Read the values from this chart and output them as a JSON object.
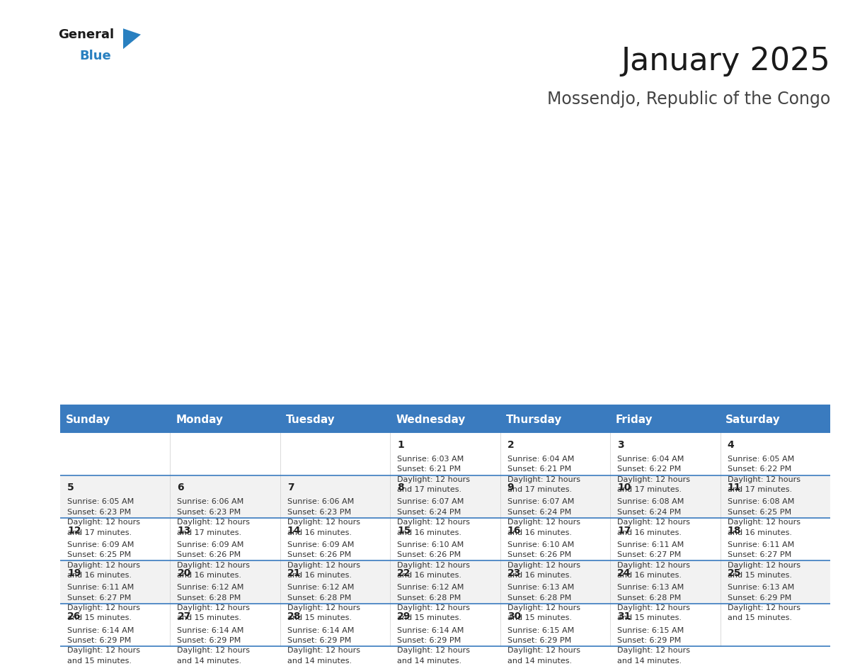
{
  "title": "January 2025",
  "subtitle": "Mossendjo, Republic of the Congo",
  "header_bg": "#3a7bbf",
  "header_text": "#ffffff",
  "cell_bg_white": "#ffffff",
  "cell_bg_gray": "#f2f2f2",
  "row_line_color": "#3a7bbf",
  "text_color": "#333333",
  "day_num_color": "#222222",
  "days_of_week": [
    "Sunday",
    "Monday",
    "Tuesday",
    "Wednesday",
    "Thursday",
    "Friday",
    "Saturday"
  ],
  "weeks": [
    [
      {
        "day": "",
        "info": ""
      },
      {
        "day": "",
        "info": ""
      },
      {
        "day": "",
        "info": ""
      },
      {
        "day": "1",
        "info": "Sunrise: 6:03 AM\nSunset: 6:21 PM\nDaylight: 12 hours\nand 17 minutes."
      },
      {
        "day": "2",
        "info": "Sunrise: 6:04 AM\nSunset: 6:21 PM\nDaylight: 12 hours\nand 17 minutes."
      },
      {
        "day": "3",
        "info": "Sunrise: 6:04 AM\nSunset: 6:22 PM\nDaylight: 12 hours\nand 17 minutes."
      },
      {
        "day": "4",
        "info": "Sunrise: 6:05 AM\nSunset: 6:22 PM\nDaylight: 12 hours\nand 17 minutes."
      }
    ],
    [
      {
        "day": "5",
        "info": "Sunrise: 6:05 AM\nSunset: 6:23 PM\nDaylight: 12 hours\nand 17 minutes."
      },
      {
        "day": "6",
        "info": "Sunrise: 6:06 AM\nSunset: 6:23 PM\nDaylight: 12 hours\nand 17 minutes."
      },
      {
        "day": "7",
        "info": "Sunrise: 6:06 AM\nSunset: 6:23 PM\nDaylight: 12 hours\nand 16 minutes."
      },
      {
        "day": "8",
        "info": "Sunrise: 6:07 AM\nSunset: 6:24 PM\nDaylight: 12 hours\nand 16 minutes."
      },
      {
        "day": "9",
        "info": "Sunrise: 6:07 AM\nSunset: 6:24 PM\nDaylight: 12 hours\nand 16 minutes."
      },
      {
        "day": "10",
        "info": "Sunrise: 6:08 AM\nSunset: 6:24 PM\nDaylight: 12 hours\nand 16 minutes."
      },
      {
        "day": "11",
        "info": "Sunrise: 6:08 AM\nSunset: 6:25 PM\nDaylight: 12 hours\nand 16 minutes."
      }
    ],
    [
      {
        "day": "12",
        "info": "Sunrise: 6:09 AM\nSunset: 6:25 PM\nDaylight: 12 hours\nand 16 minutes."
      },
      {
        "day": "13",
        "info": "Sunrise: 6:09 AM\nSunset: 6:26 PM\nDaylight: 12 hours\nand 16 minutes."
      },
      {
        "day": "14",
        "info": "Sunrise: 6:09 AM\nSunset: 6:26 PM\nDaylight: 12 hours\nand 16 minutes."
      },
      {
        "day": "15",
        "info": "Sunrise: 6:10 AM\nSunset: 6:26 PM\nDaylight: 12 hours\nand 16 minutes."
      },
      {
        "day": "16",
        "info": "Sunrise: 6:10 AM\nSunset: 6:26 PM\nDaylight: 12 hours\nand 16 minutes."
      },
      {
        "day": "17",
        "info": "Sunrise: 6:11 AM\nSunset: 6:27 PM\nDaylight: 12 hours\nand 16 minutes."
      },
      {
        "day": "18",
        "info": "Sunrise: 6:11 AM\nSunset: 6:27 PM\nDaylight: 12 hours\nand 15 minutes."
      }
    ],
    [
      {
        "day": "19",
        "info": "Sunrise: 6:11 AM\nSunset: 6:27 PM\nDaylight: 12 hours\nand 15 minutes."
      },
      {
        "day": "20",
        "info": "Sunrise: 6:12 AM\nSunset: 6:28 PM\nDaylight: 12 hours\nand 15 minutes."
      },
      {
        "day": "21",
        "info": "Sunrise: 6:12 AM\nSunset: 6:28 PM\nDaylight: 12 hours\nand 15 minutes."
      },
      {
        "day": "22",
        "info": "Sunrise: 6:12 AM\nSunset: 6:28 PM\nDaylight: 12 hours\nand 15 minutes."
      },
      {
        "day": "23",
        "info": "Sunrise: 6:13 AM\nSunset: 6:28 PM\nDaylight: 12 hours\nand 15 minutes."
      },
      {
        "day": "24",
        "info": "Sunrise: 6:13 AM\nSunset: 6:28 PM\nDaylight: 12 hours\nand 15 minutes."
      },
      {
        "day": "25",
        "info": "Sunrise: 6:13 AM\nSunset: 6:29 PM\nDaylight: 12 hours\nand 15 minutes."
      }
    ],
    [
      {
        "day": "26",
        "info": "Sunrise: 6:14 AM\nSunset: 6:29 PM\nDaylight: 12 hours\nand 15 minutes."
      },
      {
        "day": "27",
        "info": "Sunrise: 6:14 AM\nSunset: 6:29 PM\nDaylight: 12 hours\nand 14 minutes."
      },
      {
        "day": "28",
        "info": "Sunrise: 6:14 AM\nSunset: 6:29 PM\nDaylight: 12 hours\nand 14 minutes."
      },
      {
        "day": "29",
        "info": "Sunrise: 6:14 AM\nSunset: 6:29 PM\nDaylight: 12 hours\nand 14 minutes."
      },
      {
        "day": "30",
        "info": "Sunrise: 6:15 AM\nSunset: 6:29 PM\nDaylight: 12 hours\nand 14 minutes."
      },
      {
        "day": "31",
        "info": "Sunrise: 6:15 AM\nSunset: 6:29 PM\nDaylight: 12 hours\nand 14 minutes."
      },
      {
        "day": "",
        "info": ""
      }
    ]
  ],
  "logo_general_color": "#1a1a1a",
  "logo_blue_color": "#2980c0",
  "logo_triangle_color": "#2980c0",
  "title_fontsize": 32,
  "subtitle_fontsize": 17,
  "header_fontsize": 11,
  "day_num_fontsize": 10,
  "info_fontsize": 8
}
